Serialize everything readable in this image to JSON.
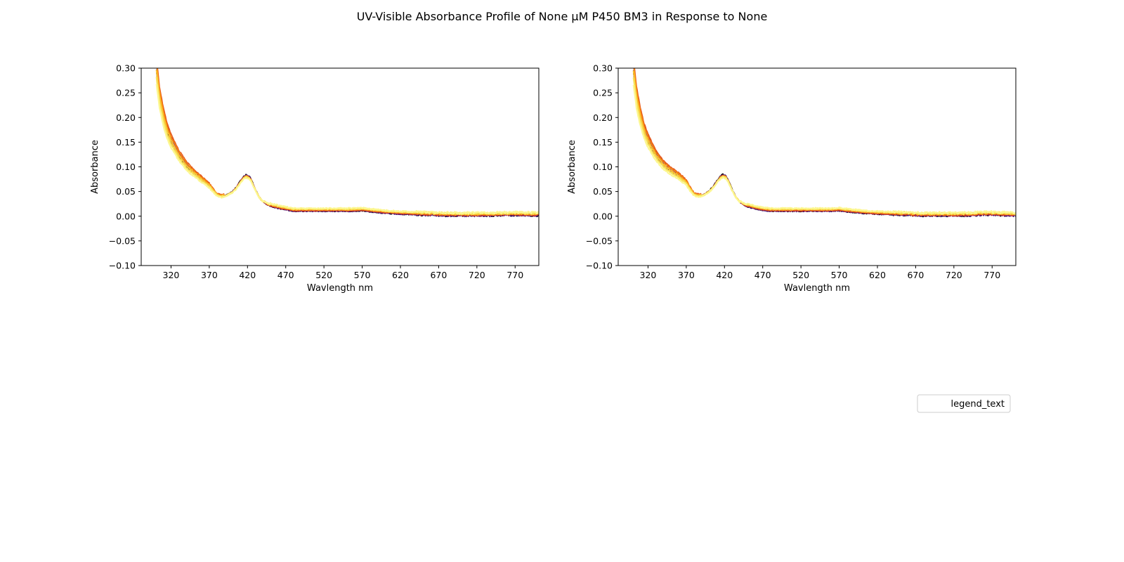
{
  "figure": {
    "title": "UV-Visible Absorbance Profile of None µM P450 BM3 in Response to None"
  },
  "legend": {
    "entries": [
      "legend_text"
    ],
    "placement": "lower-right"
  },
  "colors": {
    "series": [
      "#000004",
      "#3b0f70",
      "#8c2981",
      "#c4302a",
      "#e85d1e",
      "#f98e09",
      "#fbbf2e",
      "#f6e15a",
      "#fcf791"
    ]
  },
  "chart_data": [
    {
      "type": "line",
      "xlabel": "Wavlength nm",
      "ylabel": "Absorbance",
      "xlim": [
        281,
        801
      ],
      "ylim": [
        -0.1,
        0.3
      ],
      "xticks": [
        320,
        370,
        420,
        470,
        520,
        570,
        620,
        670,
        720,
        770
      ],
      "yticks": [
        -0.1,
        -0.05,
        0.0,
        0.05,
        0.1,
        0.15,
        0.2,
        0.25,
        0.3
      ],
      "grid": false,
      "shape": {
        "x": [
          300,
          301,
          305,
          310,
          315,
          320,
          330,
          340,
          350,
          360,
          370,
          375,
          380,
          385,
          390,
          395,
          400,
          405,
          410,
          415,
          418,
          422,
          425,
          430,
          435,
          440,
          445,
          450,
          460,
          470,
          480,
          490,
          500,
          520,
          540,
          560,
          570,
          580,
          600,
          620,
          640,
          660,
          680,
          700,
          720,
          740,
          760,
          780,
          801
        ],
        "y": [
          0.36,
          0.3,
          0.245,
          0.205,
          0.175,
          0.155,
          0.125,
          0.103,
          0.088,
          0.075,
          0.062,
          0.052,
          0.043,
          0.04,
          0.041,
          0.045,
          0.05,
          0.058,
          0.07,
          0.081,
          0.084,
          0.082,
          0.075,
          0.056,
          0.04,
          0.03,
          0.024,
          0.02,
          0.016,
          0.013,
          0.01,
          0.01,
          0.01,
          0.01,
          0.01,
          0.01,
          0.011,
          0.009,
          0.006,
          0.004,
          0.003,
          0.002,
          0.001,
          0.001,
          0.001,
          0.001,
          0.002,
          0.002,
          0.001
        ]
      },
      "series": [
        {
          "baseline_offset": 0.0,
          "peak_scale": 1.0,
          "uv_scale": 0.97
        },
        {
          "baseline_offset": 0.0,
          "peak_scale": 0.99,
          "uv_scale": 0.99
        },
        {
          "baseline_offset": 0.001,
          "peak_scale": 0.98,
          "uv_scale": 1.02
        },
        {
          "baseline_offset": 0.001,
          "peak_scale": 0.97,
          "uv_scale": 1.05
        },
        {
          "baseline_offset": 0.002,
          "peak_scale": 0.96,
          "uv_scale": 1.07
        },
        {
          "baseline_offset": 0.003,
          "peak_scale": 0.95,
          "uv_scale": 1.03
        },
        {
          "baseline_offset": 0.004,
          "peak_scale": 0.93,
          "uv_scale": 0.98
        },
        {
          "baseline_offset": 0.005,
          "peak_scale": 0.91,
          "uv_scale": 0.93
        },
        {
          "baseline_offset": 0.006,
          "peak_scale": 0.89,
          "uv_scale": 0.88
        }
      ]
    },
    {
      "type": "line",
      "xlabel": "Wavlength nm",
      "ylabel": "Absorbance",
      "xlim": [
        281,
        801
      ],
      "ylim": [
        -0.1,
        0.3
      ],
      "xticks": [
        320,
        370,
        420,
        470,
        520,
        570,
        620,
        670,
        720,
        770
      ],
      "yticks": [
        -0.1,
        -0.05,
        0.0,
        0.05,
        0.1,
        0.15,
        0.2,
        0.25,
        0.3
      ],
      "grid": false,
      "shape": {
        "x": [
          300,
          301,
          305,
          310,
          315,
          320,
          330,
          340,
          350,
          360,
          370,
          375,
          380,
          385,
          390,
          395,
          400,
          405,
          410,
          415,
          418,
          422,
          425,
          430,
          435,
          440,
          445,
          450,
          460,
          470,
          480,
          490,
          500,
          520,
          540,
          560,
          570,
          580,
          600,
          620,
          640,
          660,
          680,
          700,
          720,
          740,
          760,
          780,
          801
        ],
        "y": [
          0.36,
          0.3,
          0.245,
          0.205,
          0.175,
          0.155,
          0.125,
          0.105,
          0.092,
          0.082,
          0.068,
          0.055,
          0.044,
          0.041,
          0.042,
          0.046,
          0.052,
          0.06,
          0.072,
          0.082,
          0.085,
          0.082,
          0.074,
          0.055,
          0.039,
          0.029,
          0.023,
          0.019,
          0.015,
          0.012,
          0.01,
          0.01,
          0.01,
          0.01,
          0.01,
          0.01,
          0.011,
          0.009,
          0.006,
          0.004,
          0.003,
          0.002,
          0.001,
          0.001,
          0.001,
          0.001,
          0.003,
          0.002,
          0.001
        ]
      },
      "series": [
        {
          "baseline_offset": 0.0,
          "peak_scale": 1.0,
          "uv_scale": 0.97
        },
        {
          "baseline_offset": 0.0,
          "peak_scale": 0.99,
          "uv_scale": 0.99
        },
        {
          "baseline_offset": 0.001,
          "peak_scale": 0.98,
          "uv_scale": 1.02
        },
        {
          "baseline_offset": 0.001,
          "peak_scale": 0.97,
          "uv_scale": 1.05
        },
        {
          "baseline_offset": 0.002,
          "peak_scale": 0.96,
          "uv_scale": 1.07
        },
        {
          "baseline_offset": 0.003,
          "peak_scale": 0.95,
          "uv_scale": 1.03
        },
        {
          "baseline_offset": 0.004,
          "peak_scale": 0.93,
          "uv_scale": 0.98
        },
        {
          "baseline_offset": 0.005,
          "peak_scale": 0.91,
          "uv_scale": 0.93
        },
        {
          "baseline_offset": 0.006,
          "peak_scale": 0.89,
          "uv_scale": 0.88
        }
      ]
    }
  ]
}
